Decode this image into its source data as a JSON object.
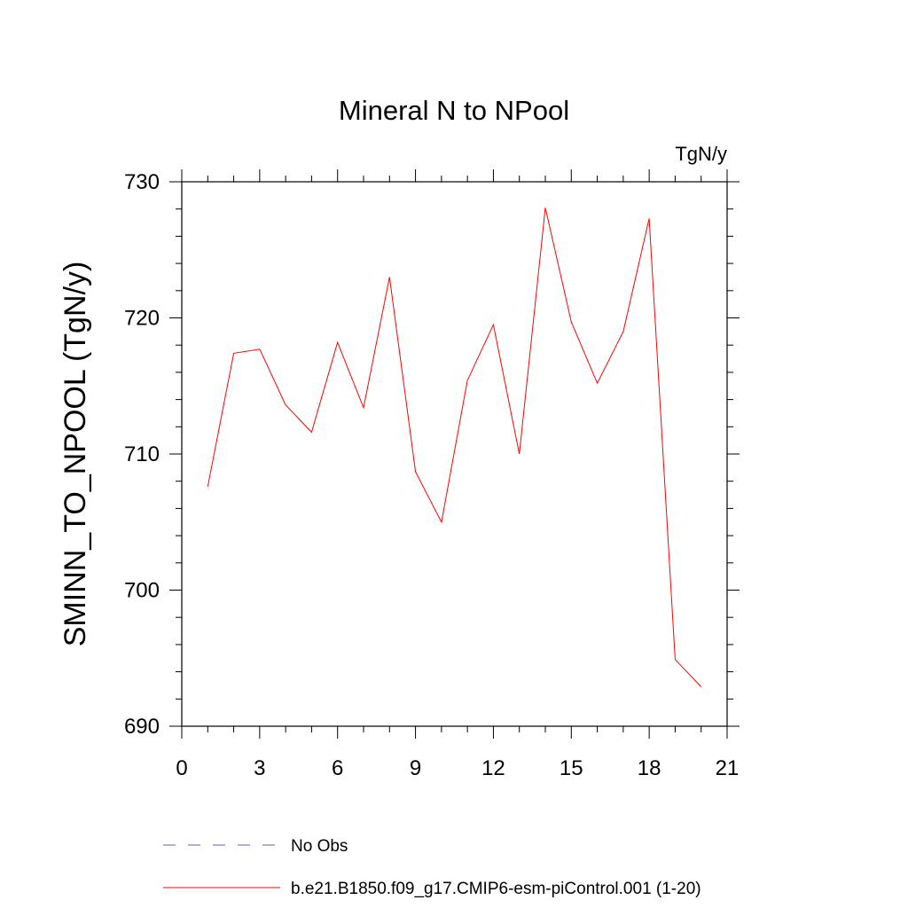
{
  "chart_data": {
    "type": "line",
    "title": "Mineral N to NPool",
    "units": "TgN/y",
    "xlabel": "",
    "ylabel": "SMINN_TO_NPOOL  (TgN/y)",
    "xlim": [
      0,
      21
    ],
    "ylim": [
      690,
      730
    ],
    "xticks": [
      0,
      3,
      6,
      9,
      12,
      15,
      18,
      21
    ],
    "yticks": [
      690,
      700,
      710,
      720,
      730
    ],
    "grid": false,
    "legend_position": "bottom",
    "x": [
      1,
      2,
      3,
      4,
      5,
      6,
      7,
      8,
      9,
      10,
      11,
      12,
      13,
      14,
      15,
      16,
      17,
      18,
      19,
      20
    ],
    "series": [
      {
        "name": "b.e21.B1850.f09_g17.CMIP6-esm-piControl.001 (1-20)",
        "color": "#ff0000",
        "values": [
          707.6,
          717.4,
          717.7,
          713.6,
          711.6,
          718.2,
          713.4,
          723.0,
          708.7,
          705.0,
          715.4,
          719.5,
          710.0,
          728.1,
          719.7,
          715.2,
          719.0,
          727.3,
          694.9,
          692.9
        ]
      }
    ],
    "legend": [
      {
        "label": "No Obs",
        "color": "#6a5acd",
        "style": "dashed"
      },
      {
        "label": "b.e21.B1850.f09_g17.CMIP6-esm-piControl.001 (1-20)",
        "color": "#ff0000",
        "style": "solid"
      }
    ]
  }
}
